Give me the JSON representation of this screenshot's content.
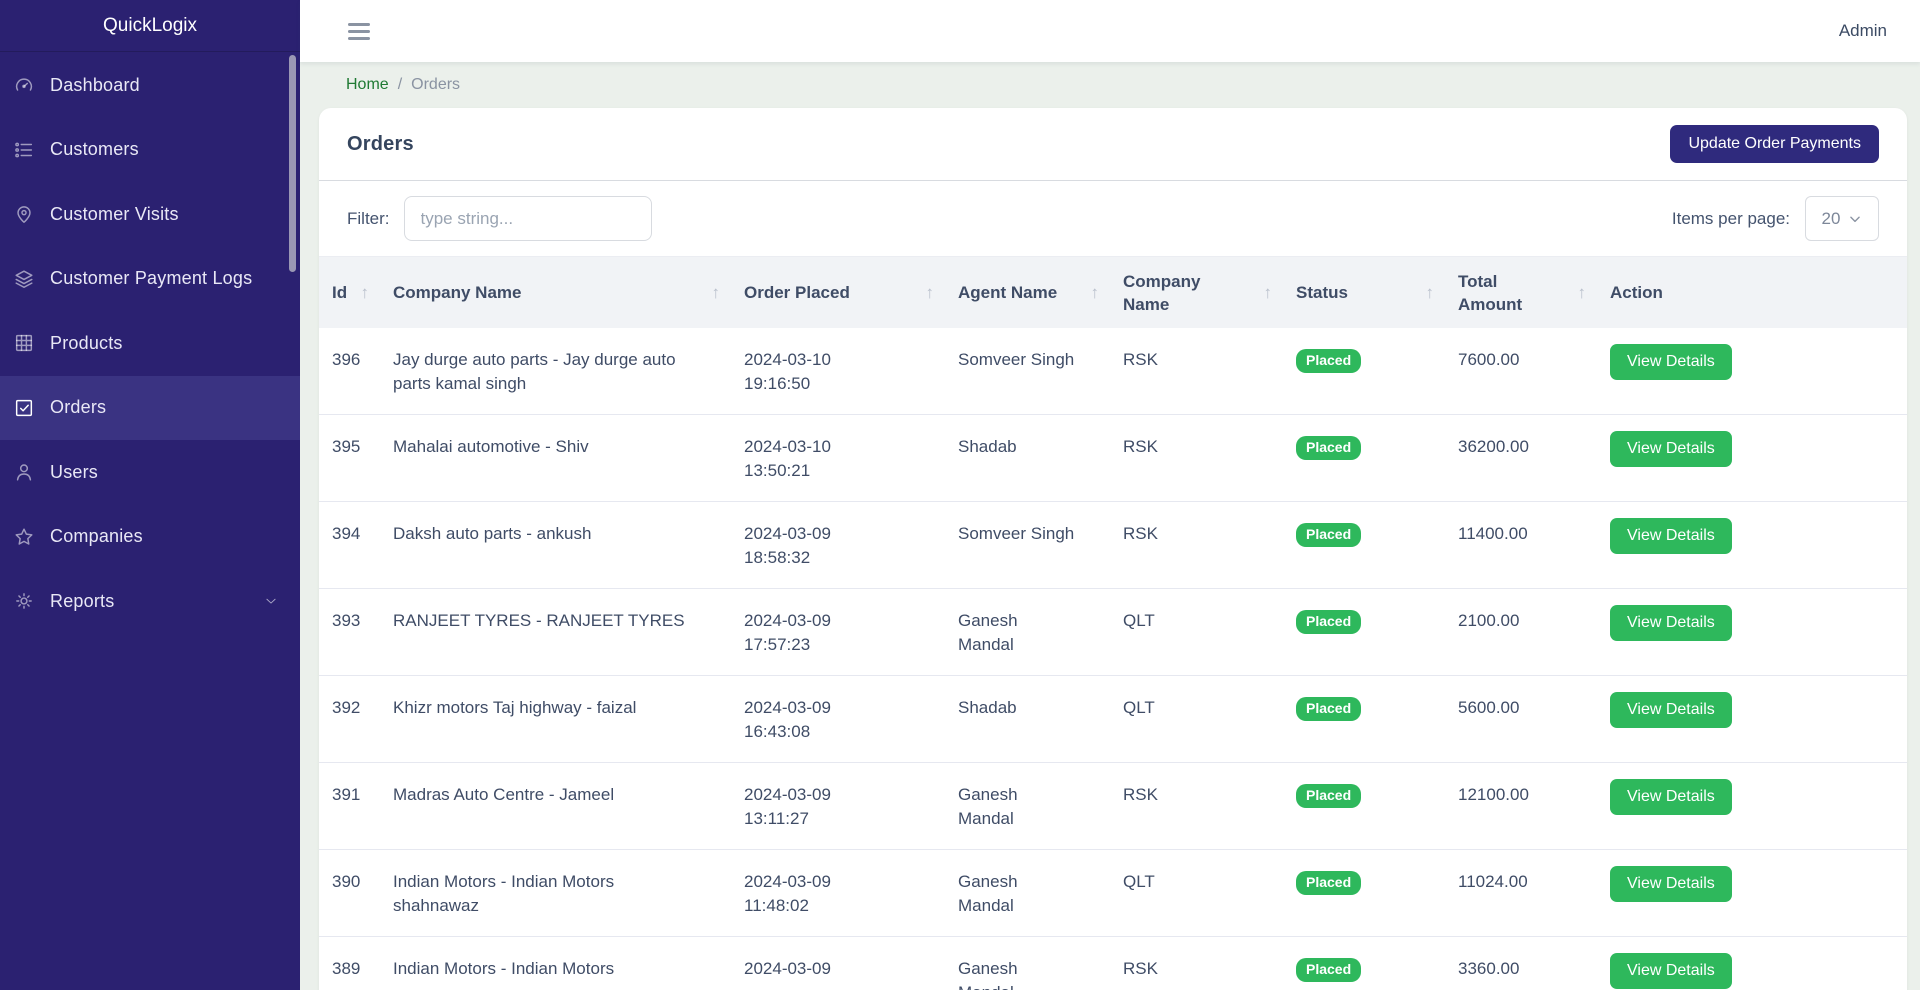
{
  "sidebar": {
    "brand": "QuickLogix",
    "items": [
      {
        "label": "Dashboard",
        "icon": "speedometer",
        "active": false,
        "expandable": false
      },
      {
        "label": "Customers",
        "icon": "list",
        "active": false,
        "expandable": false
      },
      {
        "label": "Customer Visits",
        "icon": "location-pin",
        "active": false,
        "expandable": false
      },
      {
        "label": "Customer Payment Logs",
        "icon": "layers",
        "active": false,
        "expandable": false
      },
      {
        "label": "Products",
        "icon": "grid",
        "active": false,
        "expandable": false
      },
      {
        "label": "Orders",
        "icon": "check-square",
        "active": true,
        "expandable": false
      },
      {
        "label": "Users",
        "icon": "user",
        "active": false,
        "expandable": false
      },
      {
        "label": "Companies",
        "icon": "star",
        "active": false,
        "expandable": false
      },
      {
        "label": "Reports",
        "icon": "gear",
        "active": false,
        "expandable": true
      }
    ]
  },
  "topbar": {
    "user_label": "Admin"
  },
  "breadcrumb": {
    "home": "Home",
    "separator": "/",
    "current": "Orders"
  },
  "page": {
    "title": "Orders",
    "primary_action": "Update Order Payments",
    "filter_label": "Filter:",
    "filter_placeholder": "type string...",
    "items_per_page_label": "Items per page:",
    "items_per_page_value": "20"
  },
  "table": {
    "sort_indicator": "↑",
    "columns": [
      {
        "label": "Id",
        "sortable": true
      },
      {
        "label": "Company Name",
        "sortable": true
      },
      {
        "label": "Order Placed",
        "sortable": true
      },
      {
        "label": "Agent Name",
        "sortable": true
      },
      {
        "label": "Company Name",
        "sortable": true
      },
      {
        "label": "Status",
        "sortable": true
      },
      {
        "label": "Total Amount",
        "sortable": true
      },
      {
        "label": "Action",
        "sortable": false
      }
    ],
    "rows": [
      {
        "id": "396",
        "company": "Jay durge auto parts - Jay durge auto parts kamal singh",
        "placed": "2024-03-10 19:16:50",
        "agent": "Somveer Singh",
        "company_code": "RSK",
        "status": "Placed",
        "amount": "7600.00",
        "action": "View Details"
      },
      {
        "id": "395",
        "company": "Mahalai automotive - Shiv",
        "placed": "2024-03-10 13:50:21",
        "agent": "Shadab",
        "company_code": "RSK",
        "status": "Placed",
        "amount": "36200.00",
        "action": "View Details"
      },
      {
        "id": "394",
        "company": "Daksh auto parts - ankush",
        "placed": "2024-03-09 18:58:32",
        "agent": "Somveer Singh",
        "company_code": "RSK",
        "status": "Placed",
        "amount": "11400.00",
        "action": "View Details"
      },
      {
        "id": "393",
        "company": "RANJEET TYRES - RANJEET TYRES",
        "placed": "2024-03-09 17:57:23",
        "agent": "Ganesh Mandal",
        "company_code": "QLT",
        "status": "Placed",
        "amount": "2100.00",
        "action": "View Details"
      },
      {
        "id": "392",
        "company": "Khizr motors Taj highway - faizal",
        "placed": "2024-03-09 16:43:08",
        "agent": "Shadab",
        "company_code": "QLT",
        "status": "Placed",
        "amount": "5600.00",
        "action": "View Details"
      },
      {
        "id": "391",
        "company": "Madras Auto Centre - Jameel",
        "placed": "2024-03-09 13:11:27",
        "agent": "Ganesh Mandal",
        "company_code": "RSK",
        "status": "Placed",
        "amount": "12100.00",
        "action": "View Details"
      },
      {
        "id": "390",
        "company": "Indian Motors - Indian Motors shahnawaz",
        "placed": "2024-03-09 11:48:02",
        "agent": "Ganesh Mandal",
        "company_code": "QLT",
        "status": "Placed",
        "amount": "11024.00",
        "action": "View Details"
      },
      {
        "id": "389",
        "company": "Indian Motors - Indian Motors",
        "placed": "2024-03-09",
        "agent": "Ganesh Mandal",
        "company_code": "RSK",
        "status": "Placed",
        "amount": "3360.00",
        "action": "View Details"
      }
    ]
  },
  "colors": {
    "sidebar": "#2b2171",
    "sidebar_active": "#3a3382",
    "primary_button": "#2f2a7d",
    "success": "#2eb85c",
    "breadcrumb_link": "#1f7a33",
    "page_background": "#ebf0eb"
  }
}
